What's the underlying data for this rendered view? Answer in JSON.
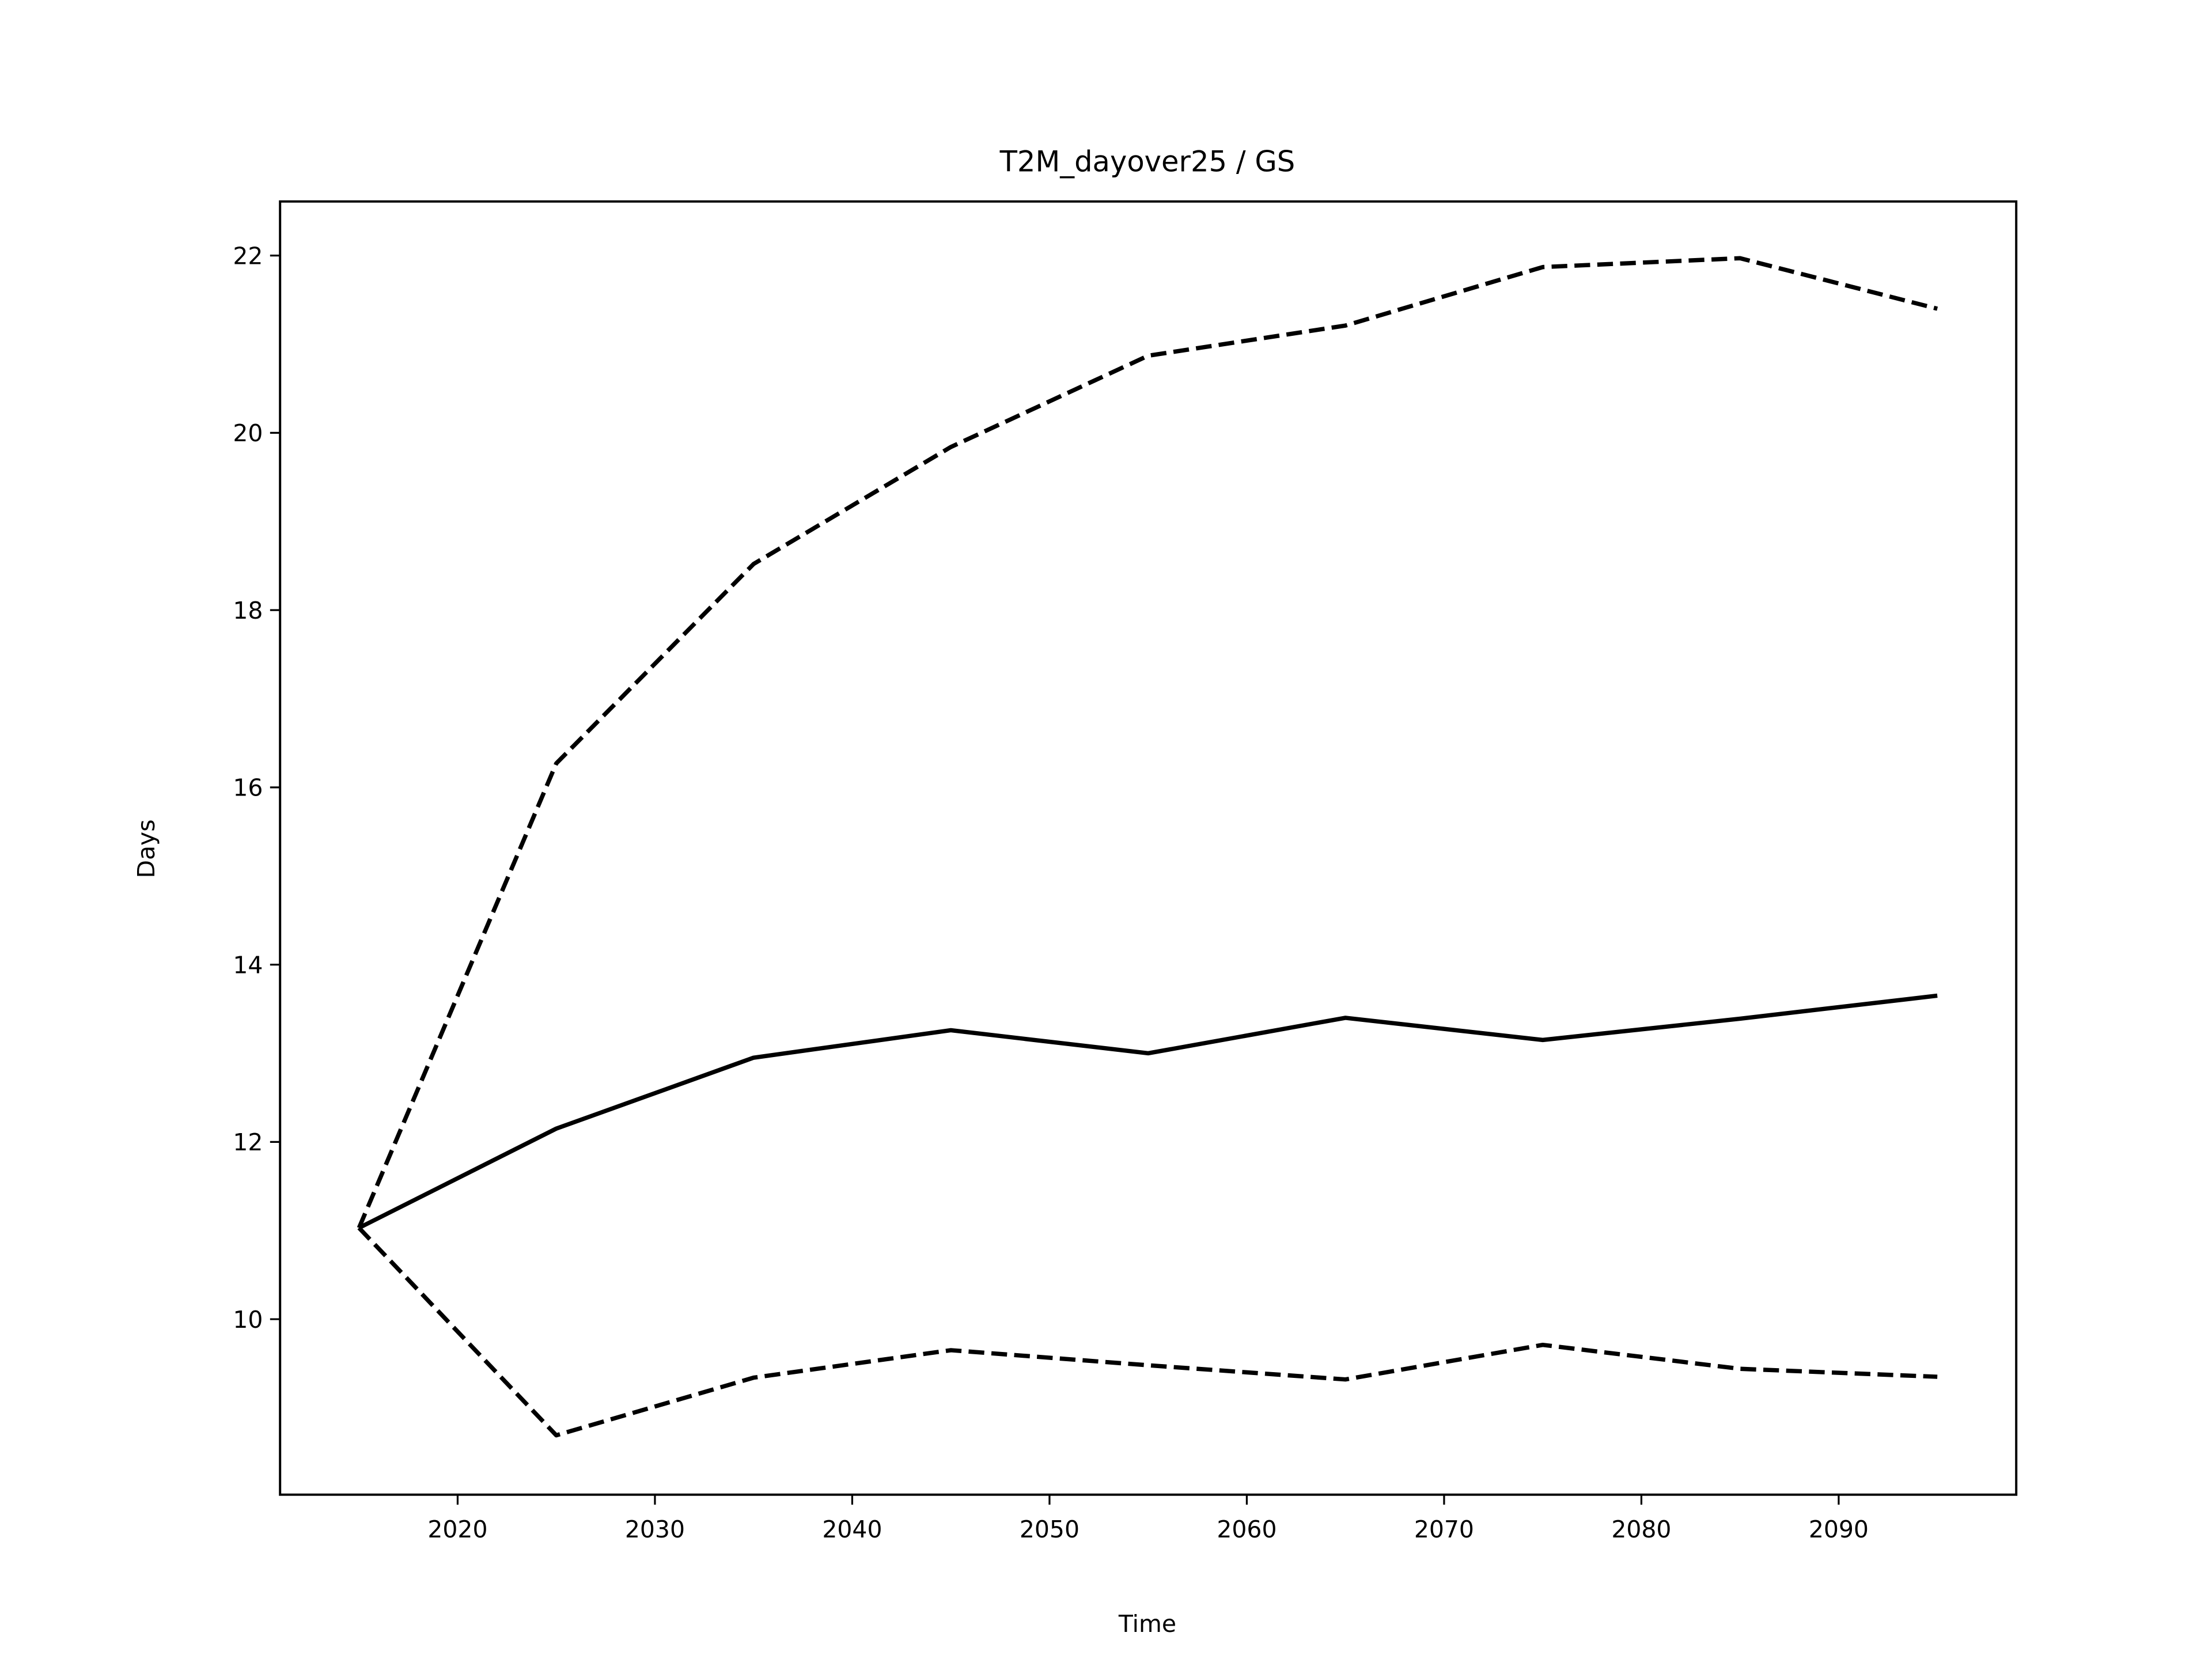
{
  "chart_data": {
    "type": "line",
    "title": "T2M_dayover25 / GS",
    "xlabel": "Time",
    "ylabel": "Days",
    "x": [
      2015,
      2025,
      2035,
      2045,
      2055,
      2065,
      2075,
      2085,
      2095
    ],
    "series": [
      {
        "color": "#000000",
        "linestyle": "solid",
        "values": [
          11.03,
          12.15,
          12.95,
          13.26,
          13.0,
          13.4,
          13.15,
          13.39,
          13.65
        ]
      },
      {
        "color": "#000000",
        "linestyle": "dashed",
        "values": [
          11.03,
          16.27,
          18.52,
          19.84,
          20.87,
          21.21,
          21.87,
          21.97,
          21.4
        ]
      },
      {
        "color": "#000000",
        "linestyle": "dashed",
        "values": [
          11.03,
          8.69,
          9.34,
          9.65,
          9.48,
          9.32,
          9.71,
          9.44,
          9.35
        ]
      }
    ],
    "xlim": [
      2011,
      2099
    ],
    "xticks": [
      2020,
      2030,
      2040,
      2050,
      2060,
      2070,
      2080,
      2090
    ],
    "ylim": [
      8.02,
      22.61
    ],
    "yticks": [
      10,
      12,
      14,
      16,
      18,
      20,
      22
    ],
    "grid": false
  }
}
